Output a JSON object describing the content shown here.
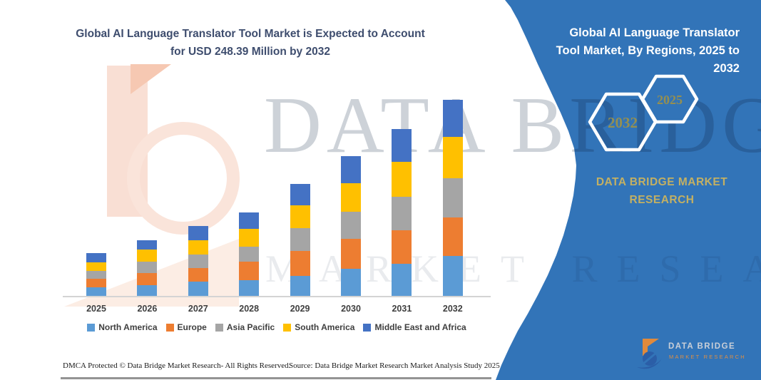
{
  "left_title": {
    "line1": "Global AI Language Translator Tool Market is Expected to Account",
    "line2": "for USD 248.39 Million by 2032"
  },
  "right_panel": {
    "title_line1": "Global AI Language Translator",
    "title_line2": "Tool Market, By Regions, 2025 to",
    "title_line3": "2032",
    "hexagon_back_label": "2032",
    "hexagon_front_label": "2025",
    "brand_text": "DATA BRIDGE MARKET RESEARCH",
    "logo_title": "DATA BRIDGE",
    "logo_subtitle": "MARKET RESEARCH",
    "colors": {
      "background": "#3274B8",
      "brand_gold": "#C3B063",
      "hexagon_year": "#948F51"
    }
  },
  "watermark": {
    "line1": "DATA BRIDGE",
    "line2": "MARKET RESEARCH"
  },
  "footer": {
    "left": "DMCA Protected © Data Bridge Market Research-  All Rights Reserved.",
    "right": "Source: Data Bridge Market Research  Market Analysis Study 2025"
  },
  "chart_data": {
    "type": "bar",
    "stacked": true,
    "title": "Global AI Language Translator Tool Market, By Regions, 2025 to 2032",
    "unit": "USD Million",
    "projected_total_2032": 248.39,
    "categories": [
      "2025",
      "2026",
      "2027",
      "2028",
      "2029",
      "2030",
      "2031",
      "2032"
    ],
    "series": [
      {
        "name": "North America",
        "color": "#5B9BD5",
        "values": [
          11.1,
          13.5,
          18.1,
          19.6,
          25.6,
          34.6,
          40.6,
          50.3
        ]
      },
      {
        "name": "Europe",
        "color": "#ED7D31",
        "values": [
          10.6,
          15.1,
          17.2,
          23.5,
          31.6,
          37.7,
          42.7,
          49.0
        ]
      },
      {
        "name": "Asia Pacific",
        "color": "#A5A5A5",
        "values": [
          9.9,
          15.0,
          17.4,
          19.2,
          28.6,
          34.6,
          42.4,
          49.7
        ]
      },
      {
        "name": "South America",
        "color": "#FFC000",
        "values": [
          10.6,
          15.1,
          18.1,
          22.6,
          28.6,
          36.1,
          44.3,
          52.7
        ]
      },
      {
        "name": "Middle East and Africa",
        "color": "#4472C4",
        "values": [
          12.0,
          12.0,
          17.5,
          20.5,
          27.4,
          33.8,
          41.3,
          46.7
        ]
      }
    ],
    "totals_by_year": [
      54.2,
      70.7,
      88.3,
      105.4,
      141.8,
      176.8,
      211.3,
      248.4
    ],
    "xlabel": "",
    "ylabel": "",
    "ylim": [
      0,
      260
    ],
    "grid": false,
    "legend_position": "bottom"
  }
}
